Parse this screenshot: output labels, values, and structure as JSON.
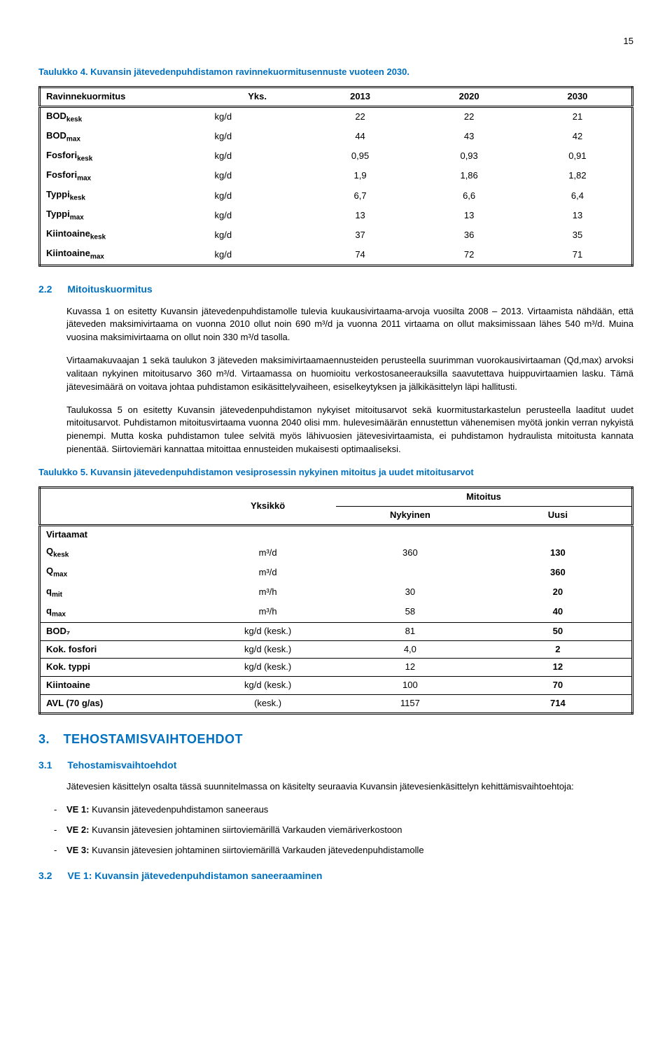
{
  "page_number": "15",
  "table4": {
    "caption": "Taulukko 4. Kuvansin jätevedenpuhdistamon ravinnekuormitusennuste vuoteen 2030.",
    "headers": [
      "Ravinnekuormitus",
      "Yks.",
      "2013",
      "2020",
      "2030"
    ],
    "rows": [
      {
        "label_main": "BOD",
        "label_sub": "kesk",
        "unit": "kg/d",
        "v1": "22",
        "v2": "22",
        "v3": "21"
      },
      {
        "label_main": "BOD",
        "label_sub": "max",
        "unit": "kg/d",
        "v1": "44",
        "v2": "43",
        "v3": "42"
      },
      {
        "label_main": "Fosfori",
        "label_sub": "kesk",
        "unit": "kg/d",
        "v1": "0,95",
        "v2": "0,93",
        "v3": "0,91"
      },
      {
        "label_main": "Fosfori",
        "label_sub": "max",
        "unit": "kg/d",
        "v1": "1,9",
        "v2": "1,86",
        "v3": "1,82"
      },
      {
        "label_main": "Typpi",
        "label_sub": "kesk",
        "unit": "kg/d",
        "v1": "6,7",
        "v2": "6,6",
        "v3": "6,4"
      },
      {
        "label_main": "Typpi",
        "label_sub": "max",
        "unit": "kg/d",
        "v1": "13",
        "v2": "13",
        "v3": "13"
      },
      {
        "label_main": "Kiintoaine",
        "label_sub": "kesk",
        "unit": "kg/d",
        "v1": "37",
        "v2": "36",
        "v3": "35"
      },
      {
        "label_main": "Kiintoaine",
        "label_sub": "max",
        "unit": "kg/d",
        "v1": "74",
        "v2": "72",
        "v3": "71"
      }
    ]
  },
  "section_2_2": {
    "num": "2.2",
    "title": "Mitoituskuormitus",
    "p1": "Kuvassa 1 on esitetty Kuvansin jätevedenpuhdistamolle tulevia kuukausivirtaama-arvoja vuosilta 2008 – 2013. Virtaamista nähdään, että jäteveden maksimivirtaama on vuonna 2010 ollut noin 690 m³/d ja vuonna 2011 virtaama on ollut maksimissaan lähes 540 m³/d. Muina vuosina maksimivirtaama on ollut noin 330 m³/d tasolla.",
    "p2": "Virtaamakuvaajan 1 sekä taulukon 3 jäteveden maksimivirtaamaennusteiden perusteella suurimman vuorokausivirtaaman (Qd,max) arvoksi valitaan nykyinen mitoitusarvo 360 m³/d. Virtaamassa on huomioitu verkostosaneerauksilla saavutettava huippuvirtaamien lasku. Tämä jätevesimäärä on voitava johtaa puhdistamon esikäsittelyvaiheen, esiselkeytyksen ja jälkikäsittelyn läpi hallitusti.",
    "p3": "Taulukossa 5 on esitetty Kuvansin jätevedenpuhdistamon nykyiset mitoitusarvot sekä kuormitustarkastelun perusteella laaditut uudet mitoitusarvot. Puhdistamon mitoitusvirtaama vuonna 2040 olisi mm. hulevesimäärän ennustettun vähenemisen myötä jonkin verran nykyistä pienempi. Mutta koska puhdistamon tulee selvitä myös lähivuosien jätevesivirtaamista, ei puhdistamon hydraulista mitoitusta kannata pienentää. Siirtoviemäri kannattaa mitoittaa ennusteiden mukaisesti optimaaliseksi."
  },
  "table5": {
    "caption": "Taulukko 5. Kuvansin jätevedenpuhdistamon vesiprosessin nykyinen mitoitus ja uudet mitoitusarvot",
    "head_unit": "Yksikkö",
    "head_mitoitus": "Mitoitus",
    "head_nyk": "Nykyinen",
    "head_uusi": "Uusi",
    "virtaamat_label": "Virtaamat",
    "flow_rows": [
      {
        "label_main": "Q",
        "label_sub": "kesk",
        "unit": "m³/d",
        "nyk": "360",
        "uusi": "130"
      },
      {
        "label_main": "Q",
        "label_sub": "max",
        "unit": "m³/d",
        "nyk": "",
        "uusi": "360"
      },
      {
        "label_main": "q",
        "label_sub": "mit",
        "unit": "m³/h",
        "nyk": "30",
        "uusi": "20"
      },
      {
        "label_main": "q",
        "label_sub": "max",
        "unit": "m³/h",
        "nyk": "58",
        "uusi": "40"
      }
    ],
    "other_rows": [
      {
        "label": "BOD₇",
        "unit": "kg/d (kesk.)",
        "nyk": "81",
        "uusi": "50"
      },
      {
        "label": "Kok. fosfori",
        "unit": "kg/d (kesk.)",
        "nyk": "4,0",
        "uusi": "2"
      },
      {
        "label": "Kok. typpi",
        "unit": "kg/d (kesk.)",
        "nyk": "12",
        "uusi": "12"
      },
      {
        "label": "Kiintoaine",
        "unit": "kg/d (kesk.)",
        "nyk": "100",
        "uusi": "70"
      },
      {
        "label": "AVL (70 g/as)",
        "unit": "(kesk.)",
        "nyk": "1157",
        "uusi": "714"
      }
    ]
  },
  "section_3": {
    "num": "3.",
    "title": "TEHOSTAMISVAIHTOEHDOT"
  },
  "section_3_1": {
    "num": "3.1",
    "title": "Tehostamisvaihtoehdot",
    "p1": "Jätevesien käsittelyn osalta tässä suunnitelmassa on käsitelty seuraavia Kuvansin jätevesienkäsittelyn kehittämisvaihtoehtoja:",
    "items": [
      {
        "ve": "VE 1:",
        "text": " Kuvansin jätevedenpuhdistamon saneeraus"
      },
      {
        "ve": "VE 2:",
        "text": " Kuvansin jätevesien johtaminen siirtoviemärillä Varkauden viemäriverkostoon"
      },
      {
        "ve": "VE 3:",
        "text": " Kuvansin jätevesien johtaminen siirtoviemärillä Varkauden jätevedenpuhdistamolle"
      }
    ]
  },
  "section_3_2": {
    "num": "3.2",
    "title": "VE 1: Kuvansin jätevedenpuhdistamon saneeraaminen"
  },
  "colors": {
    "accent": "#0070c0",
    "text": "#000000",
    "background": "#ffffff"
  }
}
